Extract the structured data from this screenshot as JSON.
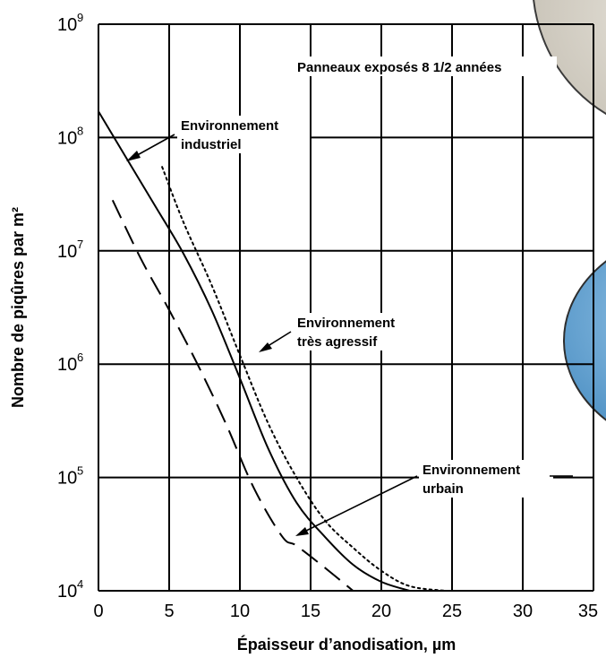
{
  "chart_data": {
    "type": "line",
    "xlabel": "Épaisseur d’anodisation, µm",
    "ylabel": "Nombre de piqûres par m²",
    "xlim": [
      0,
      35
    ],
    "ylim": [
      10000,
      1000000000
    ],
    "yscale": "log",
    "grid": true,
    "x_ticks": [
      "0",
      "5",
      "10",
      "15",
      "20",
      "25",
      "30",
      "35"
    ],
    "y_ticks": [
      {
        "base": "10",
        "exp": "9"
      },
      {
        "base": "10",
        "exp": "8"
      },
      {
        "base": "10",
        "exp": "7"
      },
      {
        "base": "10",
        "exp": "6"
      },
      {
        "base": "10",
        "exp": "5"
      },
      {
        "base": "10",
        "exp": "4"
      }
    ],
    "series": [
      {
        "style": "solid",
        "x": [
          0,
          2,
          4,
          6,
          8,
          10,
          12,
          14,
          16,
          18,
          20,
          22
        ],
        "y": [
          170000000,
          65000000,
          25000000,
          9500000,
          3000000,
          750000,
          180000,
          60000,
          30000,
          17000,
          12000,
          10000
        ]
      },
      {
        "style": "dashed",
        "x": [
          1,
          3,
          5,
          7,
          9,
          11,
          13,
          14,
          16,
          18
        ],
        "y": [
          28000000,
          8500000,
          3000000,
          1000000,
          300000,
          80000,
          30000,
          25000,
          16000,
          10000
        ]
      },
      {
        "style": "dotted",
        "x": [
          4.5,
          6,
          8,
          10,
          12,
          14,
          16,
          18,
          20,
          22,
          24.5
        ],
        "y": [
          55000000,
          18000000,
          5000000,
          1200000,
          300000,
          100000,
          42000,
          24000,
          15000,
          11000,
          10000
        ]
      }
    ],
    "annotations": [
      {
        "lines": [
          "Panneaux exposés 8 1/2 années"
        ]
      },
      {
        "lines": [
          "Environnement",
          "industriel"
        ]
      },
      {
        "lines": [
          "Environnement",
          "très agressif"
        ]
      },
      {
        "lines": [
          "Environnement",
          "urbain"
        ]
      }
    ]
  },
  "colors": {
    "grid": "#000000",
    "series": "#000000",
    "disc_gray": "#c9c4b9",
    "disc_blue": "#5a9fcd"
  }
}
